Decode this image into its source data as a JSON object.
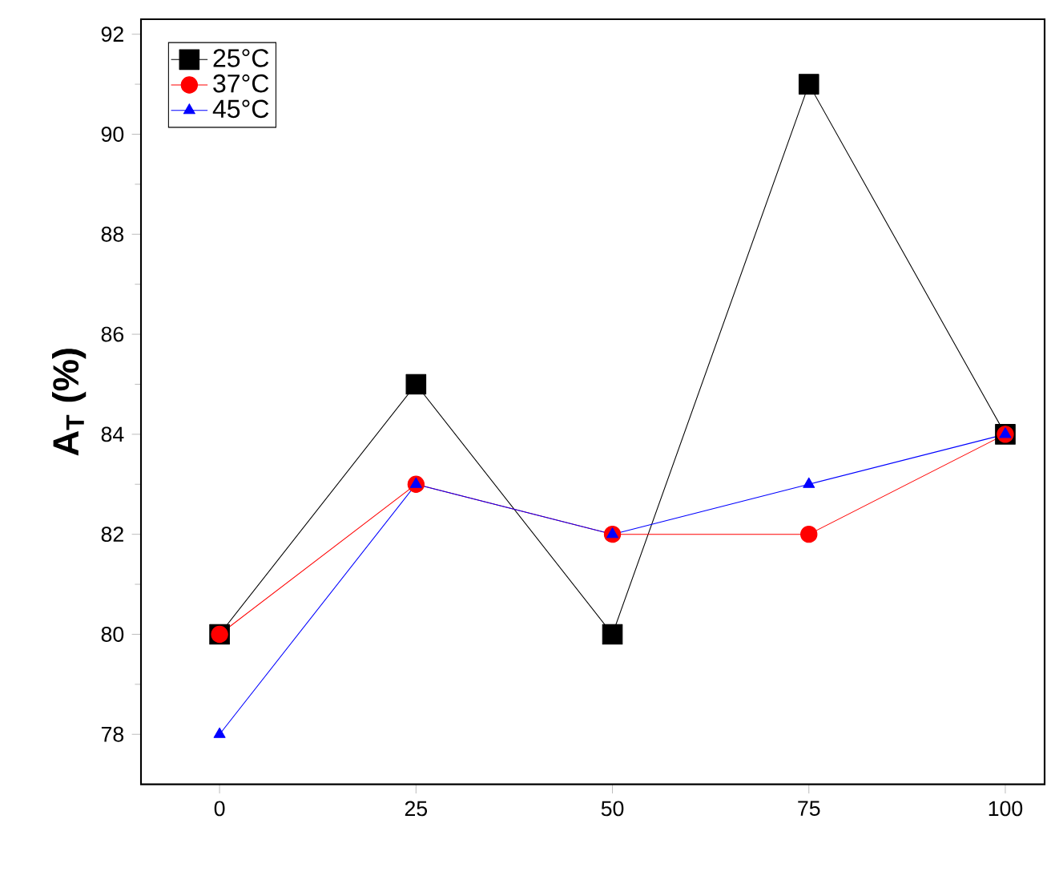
{
  "chart_data": {
    "type": "line",
    "ylabel": "A$_{T}$ (%)",
    "x": [
      0,
      25,
      50,
      75,
      100
    ],
    "series": [
      {
        "name": "25°C",
        "color": "#000000",
        "marker": "square",
        "values": [
          80,
          85,
          80,
          91,
          84
        ]
      },
      {
        "name": "37°C",
        "color": "#ff0000",
        "marker": "circle",
        "values": [
          80,
          83,
          82,
          82,
          84
        ]
      },
      {
        "name": "45°C",
        "color": "#0000ff",
        "marker": "triangle",
        "values": [
          78,
          83,
          82,
          83,
          84
        ]
      }
    ],
    "xlim": [
      -10,
      105
    ],
    "ylim": [
      77,
      92.3
    ],
    "xticks": [
      0,
      25,
      50,
      75,
      100
    ],
    "yticks": [
      78,
      80,
      82,
      84,
      86,
      88,
      90,
      92
    ],
    "grid": false,
    "legend": "top left",
    "line_style": "solid"
  }
}
